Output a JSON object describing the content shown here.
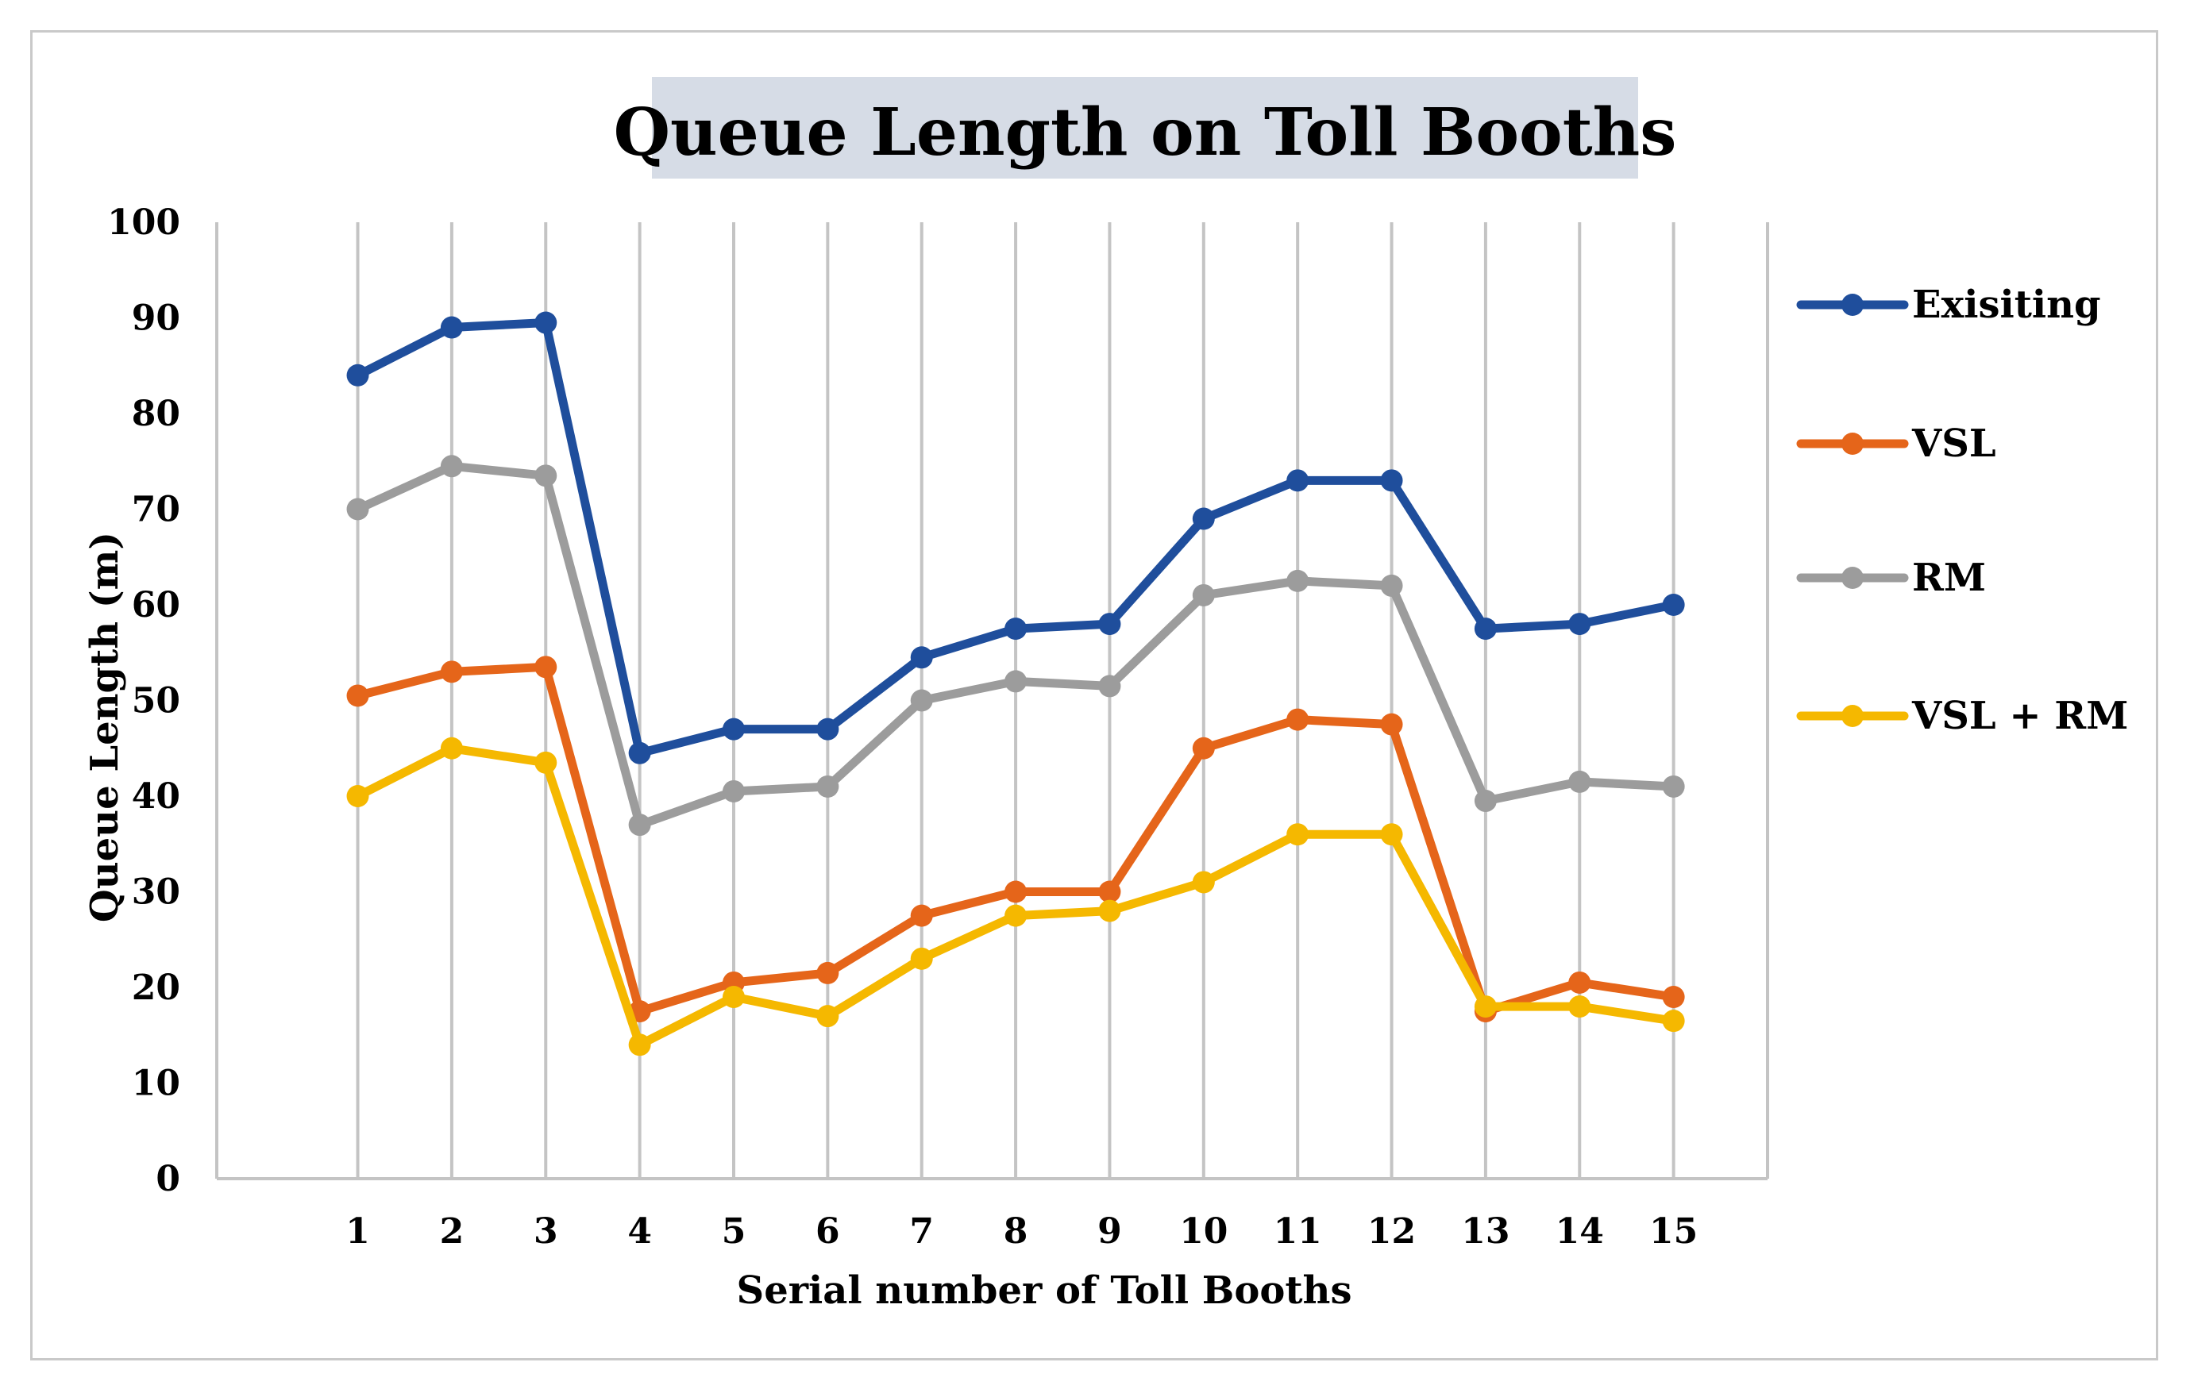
{
  "chart_data": {
    "type": "line",
    "title": "Queue Length on Toll Booths",
    "xlabel": "Serial number of Toll Booths",
    "ylabel": "Queue Length (m)",
    "categories": [
      "1",
      "2",
      "3",
      "4",
      "5",
      "6",
      "7",
      "8",
      "9",
      "10",
      "11",
      "12",
      "13",
      "14",
      "15"
    ],
    "ylim": [
      0,
      100
    ],
    "yticks": [
      "0",
      "10",
      "20",
      "30",
      "40",
      "50",
      "60",
      "70",
      "80",
      "90",
      "100"
    ],
    "grid": "vertical",
    "legend_position": "right",
    "series": [
      {
        "name": "Exisiting",
        "color": "#1f4e9c",
        "values": [
          84,
          89,
          89.5,
          44.5,
          47,
          47,
          54.5,
          57.5,
          58,
          69,
          73,
          73,
          57.5,
          58,
          60
        ]
      },
      {
        "name": "VSL",
        "color": "#e5651a",
        "values": [
          50.5,
          53,
          53.5,
          17.5,
          20.5,
          21.5,
          27.5,
          30,
          30,
          45,
          48,
          47.5,
          17.5,
          20.5,
          19
        ]
      },
      {
        "name": "RM",
        "color": "#9c9c9c",
        "values": [
          70,
          74.5,
          73.5,
          37,
          40.5,
          41,
          50,
          52,
          51.5,
          61,
          62.5,
          62,
          39.5,
          41.5,
          41
        ]
      },
      {
        "name": "VSL + RM",
        "color": "#f5b800",
        "values": [
          40,
          45,
          43.5,
          14,
          19,
          17,
          23,
          27.5,
          28,
          31,
          36,
          36,
          18,
          18,
          16.5
        ]
      }
    ]
  }
}
